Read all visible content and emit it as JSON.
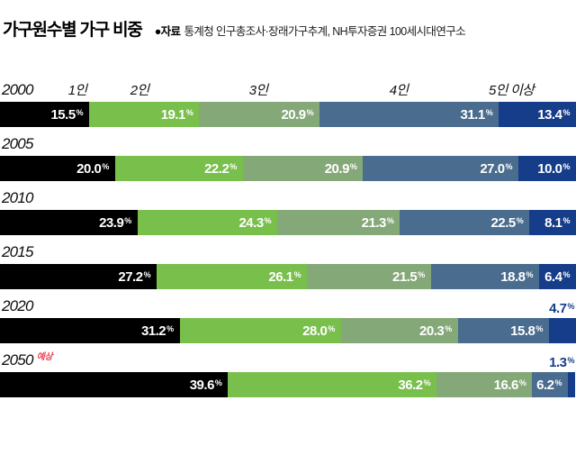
{
  "header": {
    "title": "가구원수별 가구 비중",
    "source_label": "●자료",
    "source_text": "통계청 인구총조사·장래가구추계, NH투자증권 100세시대연구소"
  },
  "chart_data": {
    "type": "bar",
    "variant": "stacked-horizontal-100pct",
    "unit": "%",
    "title": "가구원수별 가구 비중",
    "categories": [
      "1인",
      "2인",
      "3인",
      "4인",
      "5인 이상"
    ],
    "series_colors": [
      "#000000",
      "#79bf4c",
      "#85a878",
      "#4a6c8e",
      "#163d8a"
    ],
    "forecast_note": "예상",
    "forecast_note_color": "#e8465a",
    "xlim": [
      0,
      100
    ],
    "grid": false,
    "legend_position": "above-first-bar",
    "rows": [
      {
        "year": "2000",
        "forecast": false,
        "values": [
          15.5,
          19.1,
          20.9,
          31.1,
          13.4
        ]
      },
      {
        "year": "2005",
        "forecast": false,
        "values": [
          20.0,
          22.2,
          20.9,
          27.0,
          10.0
        ]
      },
      {
        "year": "2010",
        "forecast": false,
        "values": [
          23.9,
          24.3,
          21.3,
          22.5,
          8.1
        ]
      },
      {
        "year": "2015",
        "forecast": false,
        "values": [
          27.2,
          26.1,
          21.5,
          18.8,
          6.4
        ]
      },
      {
        "year": "2020",
        "forecast": false,
        "values": [
          31.2,
          28.0,
          20.3,
          15.8,
          4.7
        ]
      },
      {
        "year": "2050",
        "forecast": true,
        "values": [
          39.6,
          36.2,
          16.6,
          6.2,
          1.3
        ]
      }
    ]
  }
}
